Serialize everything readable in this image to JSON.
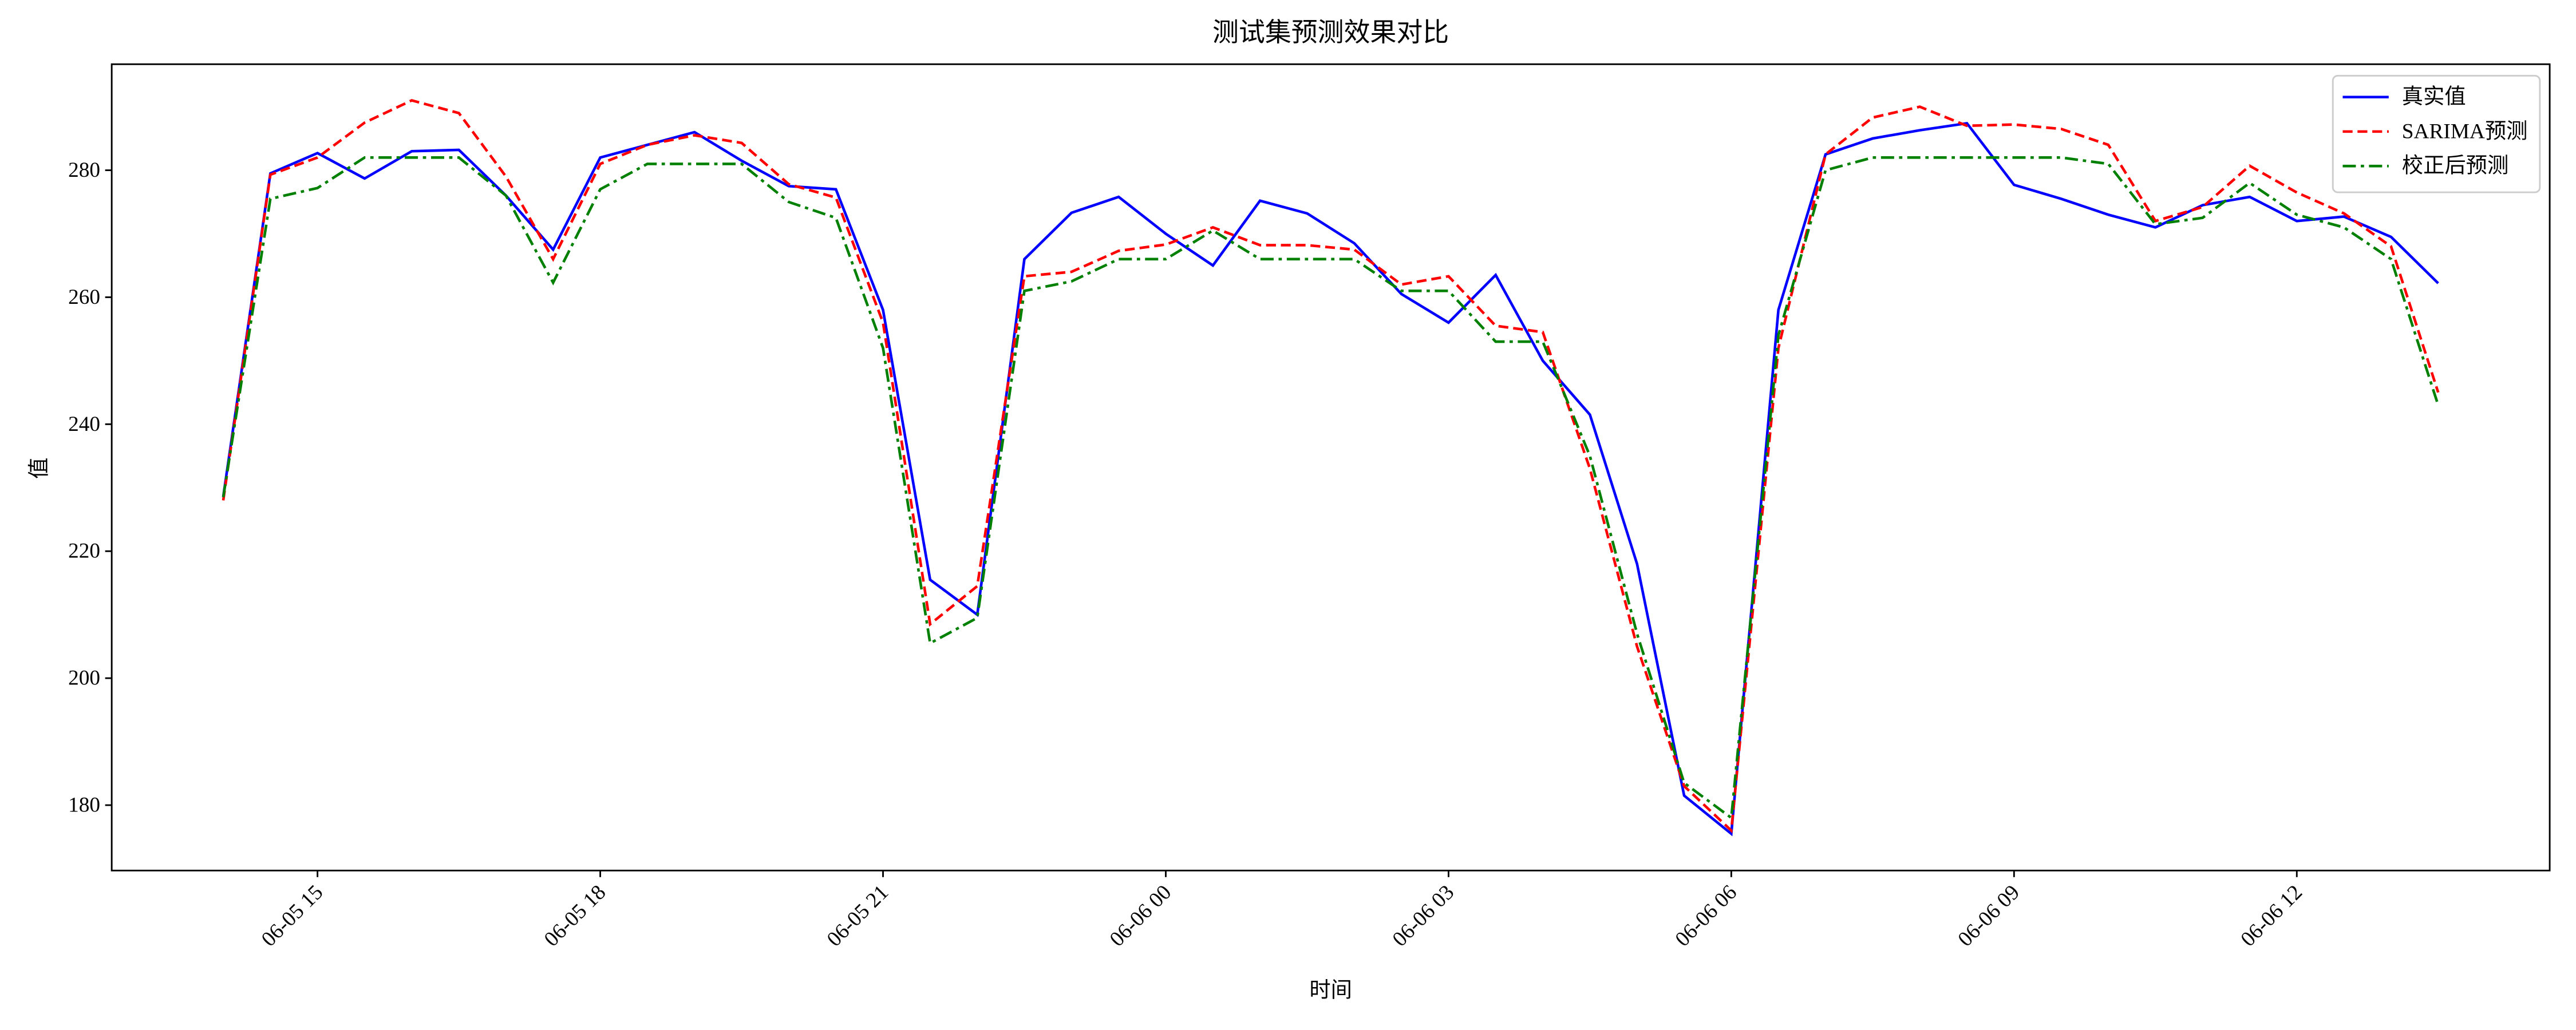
{
  "chart_data": {
    "type": "line",
    "title": "测试集预测效果对比",
    "xlabel": "时间",
    "ylabel": "值",
    "x": [
      "06-05 14:00",
      "06-05 14:30",
      "06-05 15:00",
      "06-05 15:30",
      "06-05 16:00",
      "06-05 16:30",
      "06-05 17:00",
      "06-05 17:30",
      "06-05 18:00",
      "06-05 18:30",
      "06-05 19:00",
      "06-05 19:30",
      "06-05 20:00",
      "06-05 20:30",
      "06-05 21:00",
      "06-05 21:30",
      "06-05 22:00",
      "06-05 22:30",
      "06-05 23:00",
      "06-05 23:30",
      "06-06 00:00",
      "06-06 00:30",
      "06-06 01:00",
      "06-06 01:30",
      "06-06 02:00",
      "06-06 02:30",
      "06-06 03:00",
      "06-06 03:30",
      "06-06 04:00",
      "06-06 04:30",
      "06-06 05:00",
      "06-06 05:30",
      "06-06 06:00",
      "06-06 06:30",
      "06-06 07:00",
      "06-06 07:30",
      "06-06 08:00",
      "06-06 08:30",
      "06-06 09:00",
      "06-06 09:30",
      "06-06 10:00",
      "06-06 10:30",
      "06-06 11:00",
      "06-06 11:30",
      "06-06 12:00",
      "06-06 12:30",
      "06-06 13:00",
      "06-06 13:30"
    ],
    "series": [
      {
        "name": "真实值",
        "color": "#0000ff",
        "dash": "solid",
        "values": [
          228.6,
          279.5,
          282.7,
          278.7,
          283,
          283.2,
          276,
          267.5,
          282,
          284,
          286,
          281.5,
          277.5,
          277,
          258,
          215.5,
          210,
          266,
          273.3,
          275.8,
          270,
          265,
          275.2,
          273.2,
          268.5,
          260.5,
          256,
          263.5,
          250,
          241.5,
          218,
          181.5,
          175.5,
          258,
          282.5,
          285,
          286.3,
          287.4,
          277.7,
          275.5,
          273,
          271,
          274.5,
          275.8,
          272,
          272.7,
          269.5,
          262.2
        ]
      },
      {
        "name": "SARIMA预测",
        "color": "#ff0000",
        "dash": "dashed",
        "values": [
          228,
          279.3,
          282,
          287.5,
          291,
          289,
          279,
          266,
          281,
          284,
          285.5,
          284.3,
          277.8,
          275.7,
          256,
          208.5,
          214.5,
          263.3,
          264,
          267.3,
          268.3,
          271,
          268.2,
          268.2,
          267.5,
          262,
          263.3,
          255.5,
          254.5,
          233,
          205,
          183,
          176,
          252,
          282.5,
          288.3,
          290,
          287,
          287.2,
          286.5,
          284,
          272,
          274.2,
          280.7,
          276.5,
          273.2,
          268,
          245
        ]
      },
      {
        "name": "校正后预测",
        "color": "#008000",
        "dash": "dashdot",
        "values": [
          228.5,
          275.5,
          277.2,
          282,
          282,
          282,
          276,
          262.3,
          277,
          281,
          281,
          281,
          275,
          272.5,
          252,
          205.5,
          209.5,
          261,
          262.5,
          266,
          266,
          270.5,
          266,
          266,
          266,
          261,
          261,
          253,
          253,
          235,
          207,
          183.5,
          178,
          254,
          280,
          282,
          282,
          282,
          282,
          282,
          281,
          271.5,
          272.5,
          278,
          273,
          271,
          266,
          243
        ]
      }
    ],
    "xlim": [
      "06-05 12:49",
      "06-06 14:41"
    ],
    "xticks": [
      "06-05 15",
      "06-05 18",
      "06-05 21",
      "06-06 00",
      "06-06 03",
      "06-06 06",
      "06-06 09",
      "06-06 12"
    ],
    "ylim": [
      169.7,
      296.7
    ],
    "yticks": [
      180,
      200,
      220,
      240,
      260,
      280
    ],
    "legend": "upper right"
  }
}
